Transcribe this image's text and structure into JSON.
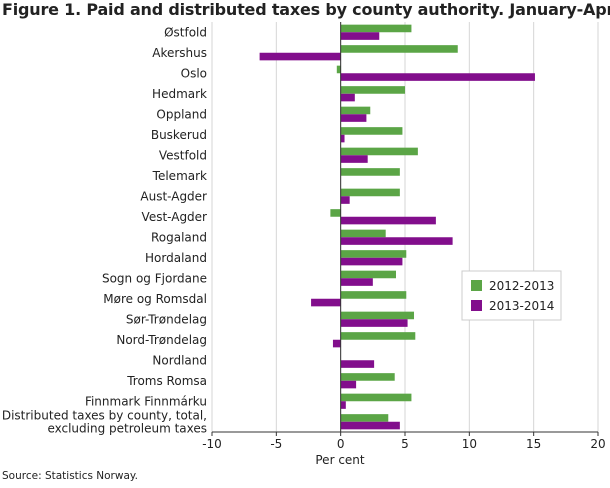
{
  "chart_data": {
    "type": "bar",
    "orientation": "horizontal",
    "title": "Figure 1. Paid and distributed taxes by county authority. January-April",
    "xlabel": "Per cent",
    "ylabel": "",
    "xlim": [
      -10,
      20
    ],
    "xticks": [
      -10,
      -5,
      0,
      5,
      10,
      15,
      20
    ],
    "grid": "vertical",
    "legend_position": "right",
    "categories": [
      [
        "Østfold"
      ],
      [
        "Akershus"
      ],
      [
        "Oslo"
      ],
      [
        "Hedmark"
      ],
      [
        "Oppland"
      ],
      [
        "Buskerud"
      ],
      [
        "Vestfold"
      ],
      [
        "Telemark"
      ],
      [
        "Aust-Agder"
      ],
      [
        "Vest-Agder"
      ],
      [
        "Rogaland"
      ],
      [
        "Hordaland"
      ],
      [
        "Sogn og Fjordane"
      ],
      [
        "Møre og Romsdal"
      ],
      [
        "Sør-Trøndelag"
      ],
      [
        "Nord-Trøndelag"
      ],
      [
        "Nordland"
      ],
      [
        "Troms Romsa"
      ],
      [
        "Finnmark Finnmárku"
      ],
      [
        "Distributed taxes by county, total,",
        "excluding petroleum taxes"
      ]
    ],
    "series": [
      {
        "name": "2012-2013",
        "color": "#5ba546",
        "values": [
          5.5,
          9.1,
          -0.3,
          5.0,
          2.3,
          4.8,
          6.0,
          4.6,
          4.6,
          -0.8,
          3.5,
          5.1,
          4.3,
          5.1,
          5.7,
          5.8,
          0.0,
          4.2,
          5.5,
          3.7
        ]
      },
      {
        "name": "2013-2014",
        "color": "#820e8c",
        "values": [
          3.0,
          -6.3,
          15.1,
          1.1,
          2.0,
          0.3,
          2.1,
          0.0,
          0.7,
          7.4,
          8.7,
          4.8,
          2.5,
          -2.3,
          5.2,
          -0.6,
          2.6,
          1.2,
          0.4,
          4.6
        ]
      }
    ]
  },
  "source": "Source: Statistics Norway."
}
